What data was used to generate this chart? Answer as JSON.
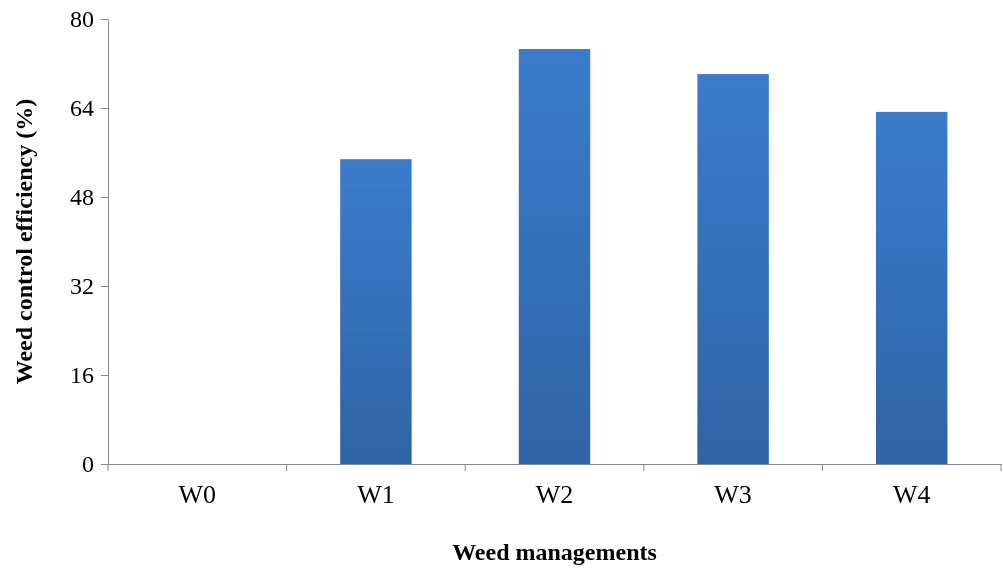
{
  "chart_data": {
    "type": "bar",
    "xlabel": "Weed managements",
    "ylabel": "Weed control efficiency (%)",
    "categories": [
      "W0",
      "W1",
      "W2",
      "W3",
      "W4"
    ],
    "values": [
      0,
      54.8,
      74.6,
      70.1,
      63.3
    ],
    "color": "#3a7ccc",
    "ylim": [
      0,
      80
    ],
    "yticks": [
      0,
      16,
      32,
      48,
      64,
      80
    ],
    "grid": false
  }
}
